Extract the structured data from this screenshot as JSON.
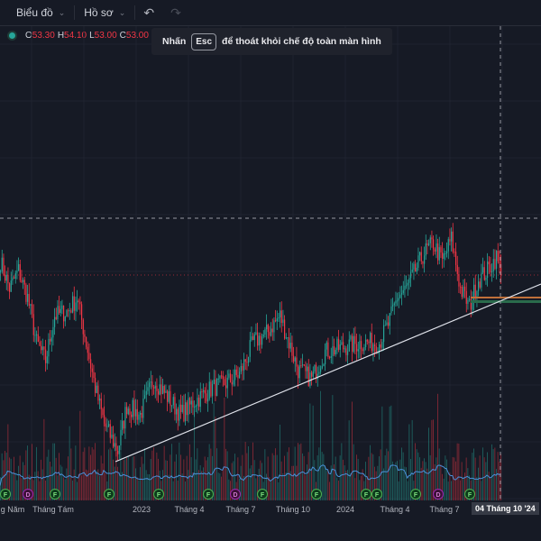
{
  "toolbar": {
    "chart_label": "Biểu đồ",
    "profile_label": "Hồ sơ"
  },
  "legend": {
    "o_label": "O",
    "o": "53.30",
    "h_label": "H",
    "h": "54.10",
    "l_label": "L",
    "l": "53.00",
    "c_label": "C",
    "c": "53.00",
    "change": "−"
  },
  "toast": {
    "before": "Nhấn",
    "key": "Esc",
    "after": "để thoát khỏi chế độ toàn màn hình"
  },
  "colors": {
    "up": "#26a69a",
    "down": "#f23645",
    "volume_ma": "#4a90d9",
    "trendline": "#e0e3eb",
    "background": "#161a25"
  },
  "x_axis": {
    "labels": [
      "g Năm",
      "Tháng Tám",
      "2023",
      "Tháng 4",
      "Tháng 7",
      "Tháng 10",
      "2024",
      "Tháng 4",
      "Tháng 7"
    ],
    "current": "04 Tháng 10 '24"
  },
  "chart_data": {
    "type": "candlestick",
    "t": [
      0,
      2,
      4,
      6,
      8,
      10,
      12,
      15,
      17,
      19,
      21,
      23,
      26,
      28,
      31,
      34,
      37,
      40,
      43,
      47,
      50,
      53,
      56,
      59,
      62,
      64,
      66,
      69,
      72,
      76,
      80,
      84,
      86,
      88,
      90,
      92,
      94,
      96,
      98,
      100,
      102,
      104,
      106,
      108,
      110,
      111
    ],
    "close": [
      54.5,
      51.5,
      53.5,
      50.5,
      45.5,
      43.5,
      48.5,
      49.0,
      50.5,
      45.5,
      40.5,
      36.5,
      33.5,
      38.5,
      37.5,
      41.5,
      39.5,
      37.5,
      39.0,
      40.5,
      41.0,
      42.0,
      45.5,
      46.5,
      48.5,
      45.5,
      42.5,
      41.5,
      44.5,
      45.0,
      45.5,
      45.5,
      47.5,
      50.5,
      51.5,
      53.5,
      55.5,
      56.5,
      54.5,
      57.0,
      51.5,
      49.5,
      52.5,
      53.5,
      55.0,
      53.0
    ],
    "last_price": 53.0,
    "trendline": {
      "from": {
        "t": 25.6,
        "price": 32.3
      },
      "to": {
        "t": 120,
        "price": 52.0
      }
    },
    "events": [
      {
        "t": 0,
        "type": "F"
      },
      {
        "t": 5,
        "type": "D"
      },
      {
        "t": 11,
        "type": "F"
      },
      {
        "t": 23,
        "type": "F"
      },
      {
        "t": 34,
        "type": "F"
      },
      {
        "t": 45,
        "type": "F"
      },
      {
        "t": 51,
        "type": "D"
      },
      {
        "t": 57,
        "type": "F"
      },
      {
        "t": 69,
        "type": "F"
      },
      {
        "t": 80,
        "type": "F"
      },
      {
        "t": 81,
        "type": "F"
      },
      {
        "t": 91,
        "type": "F"
      },
      {
        "t": 96,
        "type": "D"
      },
      {
        "t": 103,
        "type": "F"
      }
    ]
  }
}
